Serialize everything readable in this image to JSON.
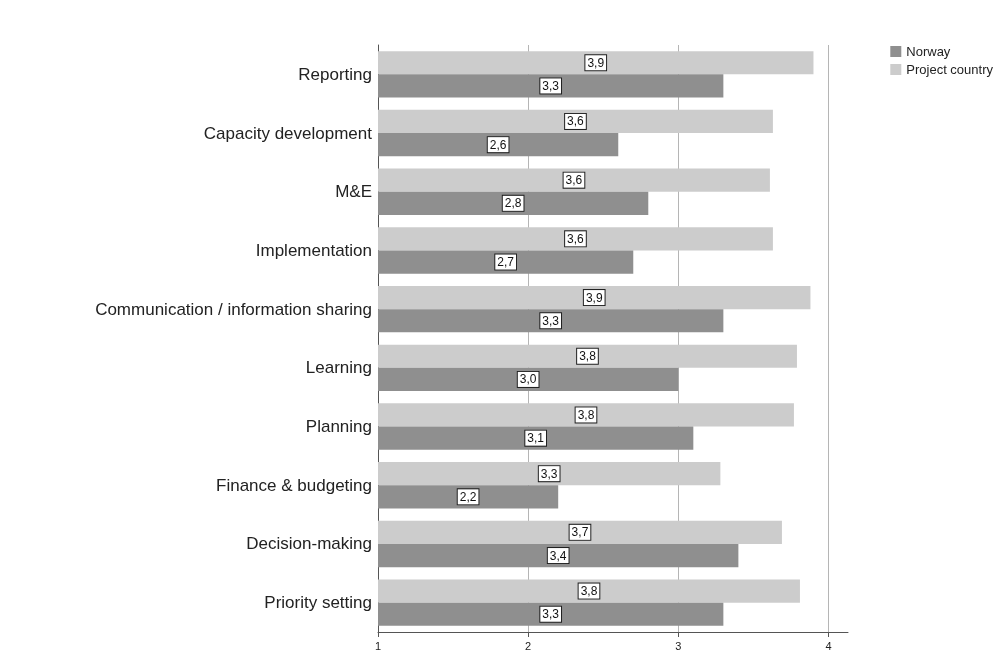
{
  "chart_data": {
    "type": "bar",
    "orientation": "horizontal",
    "categories": [
      "Reporting",
      "Capacity development",
      "M&E",
      "Implementation",
      "Communication / information sharing",
      "Learning",
      "Planning",
      "Finance & budgeting",
      "Decision-making",
      "Priority setting"
    ],
    "series": [
      {
        "name": "Norway",
        "color": "#8f8f8f",
        "values": [
          3.3,
          2.6,
          2.8,
          2.7,
          3.3,
          3.0,
          3.1,
          2.2,
          3.4,
          3.3
        ],
        "value_labels": [
          "3,3",
          "2,6",
          "2,8",
          "2,7",
          "3,3",
          "3,0",
          "3,1",
          "2,2",
          "3,4",
          "3,3"
        ]
      },
      {
        "name": "Project country",
        "color": "#cccccc",
        "values": [
          3.9,
          3.63,
          3.61,
          3.63,
          3.88,
          3.79,
          3.77,
          3.28,
          3.69,
          3.81
        ],
        "value_labels": [
          "3,9",
          "3,6",
          "3,6",
          "3,6",
          "3,9",
          "3,8",
          "3,8",
          "3,3",
          "3,7",
          "3,8"
        ]
      }
    ],
    "xlim": [
      1,
      4.13
    ],
    "xticks": [
      1,
      2,
      3,
      4
    ],
    "grid": "x",
    "legend": "top right"
  }
}
